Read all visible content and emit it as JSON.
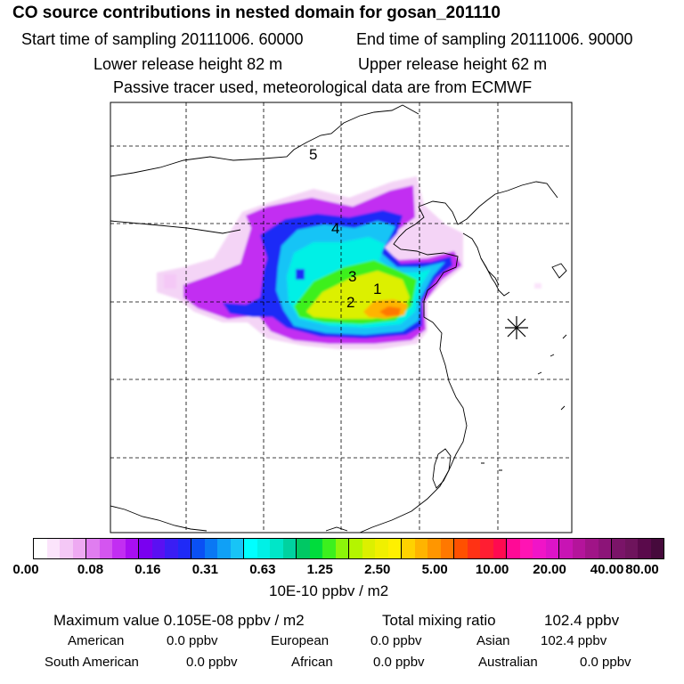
{
  "header": {
    "title": "CO  source contributions in nested domain for gosan_201110",
    "start_label": "Start time of sampling 20111006. 60000",
    "end_label": "End time of sampling 20111006. 90000",
    "lower_label": "Lower release height   82 m",
    "upper_label": "Upper release height   62 m",
    "tracer_label": "Passive tracer used, meteorological data are from ECMWF"
  },
  "map": {
    "source_markers": [
      "1",
      "2",
      "3",
      "4",
      "5"
    ],
    "receptor_symbol": "✳"
  },
  "colorbar": {
    "ticks": [
      "0.00",
      "0.08",
      "0.16",
      "0.31",
      "0.63",
      "1.25",
      "2.50",
      "5.00",
      "10.00",
      "20.00",
      "40.00",
      "80.00"
    ],
    "unit": "10E-10 ppbv / m2",
    "colors": [
      [
        "#ffffff",
        "#fbe4fb",
        "#f4c8f6",
        "#eeaaf2"
      ],
      [
        "#e07df0",
        "#d455f0",
        "#c22ef2",
        "#a80ff2"
      ],
      [
        "#7a00f0",
        "#5a10f2",
        "#3a1ef4",
        "#1f2af7"
      ],
      [
        "#0a50f4",
        "#0a78f4",
        "#10a0f6",
        "#18c4f6"
      ],
      [
        "#00ffff",
        "#00f0e6",
        "#00e6c8",
        "#00d2a0"
      ],
      [
        "#00c864",
        "#00dc3c",
        "#3cf01e",
        "#8cf50a"
      ],
      [
        "#b4f500",
        "#dcf000",
        "#f0f000",
        "#fff000"
      ],
      [
        "#ffd200",
        "#ffb400",
        "#ff9600",
        "#ff7800"
      ],
      [
        "#ff5000",
        "#ff3214",
        "#ff1e32",
        "#ff0a50"
      ],
      [
        "#ff0a96",
        "#ff14b4",
        "#f014c8",
        "#dc14c8"
      ],
      [
        "#c814b4",
        "#b4149b",
        "#a01487",
        "#8c1478"
      ],
      [
        "#7a1468",
        "#6e145c",
        "#5a0a4b",
        "#460a3c"
      ]
    ]
  },
  "footer": {
    "max_label": "Maximum value  0.105E-08 ppbv / m2",
    "total_label": "Total mixing ratio",
    "total_value": "102.4 ppbv",
    "american_label": "American",
    "american_value": "0.0 ppbv",
    "european_label": "European",
    "european_value": "0.0 ppbv",
    "asian_label": "Asian",
    "asian_value": "102.4 ppbv",
    "south_american_label": "South American",
    "south_american_value": "0.0 ppbv",
    "african_label": "African",
    "african_value": "0.0 ppbv",
    "australian_label": "Australian",
    "australian_value": "0.0 ppbv"
  }
}
